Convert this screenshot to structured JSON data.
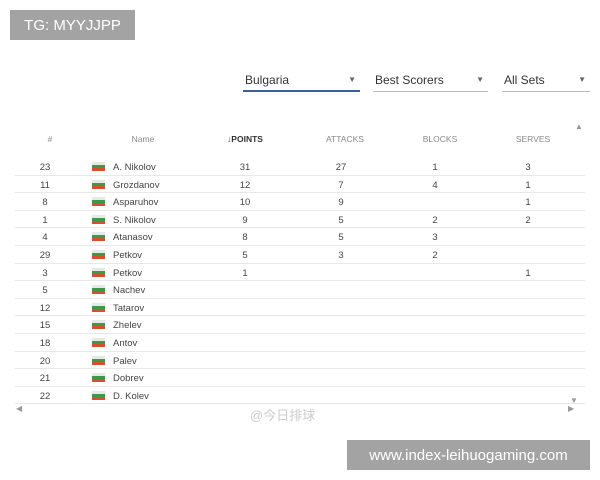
{
  "overlays": {
    "tg": "TG: MYYJJPP",
    "site": "www.index-leihuogaming.com",
    "watermark": "@今日排球"
  },
  "filters": [
    {
      "value": "Bulgaria",
      "active": true
    },
    {
      "value": "Best Scorers",
      "active": false
    },
    {
      "value": "All Sets",
      "active": false
    }
  ],
  "table": {
    "columns": [
      "#",
      "Name",
      "POINTS",
      "ATTACKS",
      "BLOCKS",
      "SERVES"
    ],
    "sort_column": "POINTS",
    "sort_direction": "descending",
    "rows": [
      {
        "num": "23",
        "name": "A. Nikolov",
        "points": "31",
        "attacks": "27",
        "blocks": "1",
        "serves": "3"
      },
      {
        "num": "11",
        "name": "Grozdanov",
        "points": "12",
        "attacks": "7",
        "blocks": "4",
        "serves": "1"
      },
      {
        "num": "8",
        "name": "Asparuhov",
        "points": "10",
        "attacks": "9",
        "blocks": "",
        "serves": "1"
      },
      {
        "num": "1",
        "name": "S. Nikolov",
        "points": "9",
        "attacks": "5",
        "blocks": "2",
        "serves": "2"
      },
      {
        "num": "4",
        "name": "Atanasov",
        "points": "8",
        "attacks": "5",
        "blocks": "3",
        "serves": ""
      },
      {
        "num": "29",
        "name": "Petkov",
        "points": "5",
        "attacks": "3",
        "blocks": "2",
        "serves": ""
      },
      {
        "num": "3",
        "name": "Petkov",
        "points": "1",
        "attacks": "",
        "blocks": "",
        "serves": "1"
      },
      {
        "num": "5",
        "name": "Nachev",
        "points": "",
        "attacks": "",
        "blocks": "",
        "serves": ""
      },
      {
        "num": "12",
        "name": "Tatarov",
        "points": "",
        "attacks": "",
        "blocks": "",
        "serves": ""
      },
      {
        "num": "15",
        "name": "Zhelev",
        "points": "",
        "attacks": "",
        "blocks": "",
        "serves": ""
      },
      {
        "num": "18",
        "name": "Antov",
        "points": "",
        "attacks": "",
        "blocks": "",
        "serves": ""
      },
      {
        "num": "20",
        "name": "Palev",
        "points": "",
        "attacks": "",
        "blocks": "",
        "serves": ""
      },
      {
        "num": "21",
        "name": "Dobrev",
        "points": "",
        "attacks": "",
        "blocks": "",
        "serves": ""
      },
      {
        "num": "22",
        "name": "D. Kolev",
        "points": "",
        "attacks": "",
        "blocks": "",
        "serves": ""
      }
    ]
  }
}
